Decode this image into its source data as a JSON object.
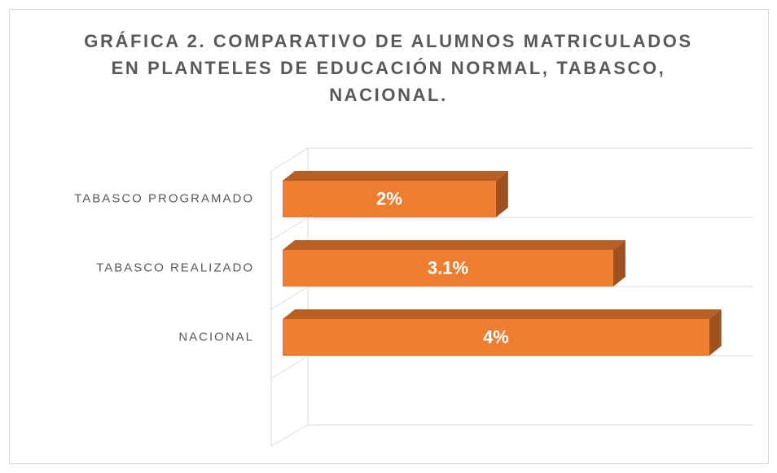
{
  "chart_data": {
    "type": "bar3d",
    "title": "GRÁFICA 2. COMPARATIVO DE ALUMNOS MATRICULADOS EN PLANTELES DE EDUCACIÓN NORMAL, TABASCO, NACIONAL.",
    "categories": [
      "TABASCO PROGRAMADO",
      "TABASCO REALIZADO",
      "NACIONAL"
    ],
    "values": [
      2,
      3.1,
      4
    ],
    "value_labels": [
      "2%",
      "3.1%",
      "4%"
    ],
    "color": "#ed7d31",
    "xlim": [
      0,
      4.3
    ]
  }
}
